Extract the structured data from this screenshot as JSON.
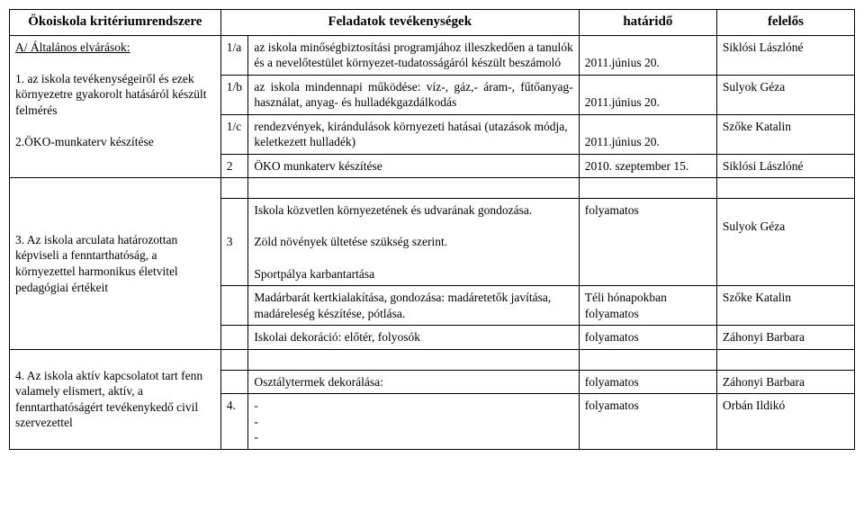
{
  "header": {
    "c1": "Ökoiskola kritériumrendszere",
    "c2": "Feladatok tevékenységek",
    "c3": "határidő",
    "c4": "felelős"
  },
  "section_a": {
    "title": "A/ Általános elvárások:",
    "crit1": "1. az iskola tevékenységeiről és ezek környezetre gyakorolt hatásáról készült felmérés",
    "crit2": "2.ÖKO-munkaterv készítése",
    "crit3": "3. Az iskola arculata határozottan képviseli a fenntarthatóság, a környezettel harmonikus életvitel pedagógiai értékeit",
    "crit4": "4. Az iskola aktív kapcsolatot tart fenn valamely elismert, aktív, a fenntarthatóságért tevékenykedő civil szervezettel"
  },
  "rows": {
    "r1": {
      "num": "1/a",
      "task": "az iskola minőségbiztosítási programjához illeszkedően a tanulók és a nevelőtestület környezet-tudatosságáról készült beszámoló",
      "deadline": "2011.június 20.",
      "resp": "Siklósi Lászlóné"
    },
    "r2": {
      "num": "1/b",
      "task": "az iskola mindennapi működése: víz-, gáz,- áram-, fűtőanyag-használat, anyag- és hulladékgazdálkodás",
      "deadline": "2011.június 20.",
      "resp": "Sulyok Géza"
    },
    "r3": {
      "num": "1/c",
      "task": "rendezvények, kirándulások környezeti hatásai (utazások módja, keletkezett hulladék)",
      "deadline": "2011.június 20.",
      "resp": "Szőke Katalin"
    },
    "r4": {
      "num": "2",
      "task": "ÖKO munkaterv készítése",
      "deadline": "2010. szeptember 15.",
      "resp": "Siklósi Lászlóné"
    },
    "r5": {
      "num": "3",
      "task1": "Iskola közvetlen környezetének és udvarának gondozása.",
      "task2": "Zöld növények ültetése szükség szerint.",
      "task3": "Sportpálya karbantartása",
      "deadline": "folyamatos",
      "resp": "Sulyok Géza"
    },
    "r6": {
      "task": "Madárbarát kertkialakítása, gondozása: madáretetők javítása, madáreleség készítése, pótlása.",
      "deadline": "Téli hónapokban folyamatos",
      "resp": "Szőke Katalin"
    },
    "r7": {
      "task": "Iskolai dekoráció: előtér, folyosók",
      "deadline": "folyamatos",
      "resp": "Záhonyi Barbara"
    },
    "r8": {
      "task": "Osztálytermek dekorálása:",
      "deadline": "folyamatos",
      "resp": "Záhonyi Barbara"
    },
    "r9": {
      "num": "4.",
      "task": "-",
      "task2": "-",
      "task3": "-",
      "deadline": "folyamatos",
      "resp": "Orbán Ildikó"
    }
  }
}
